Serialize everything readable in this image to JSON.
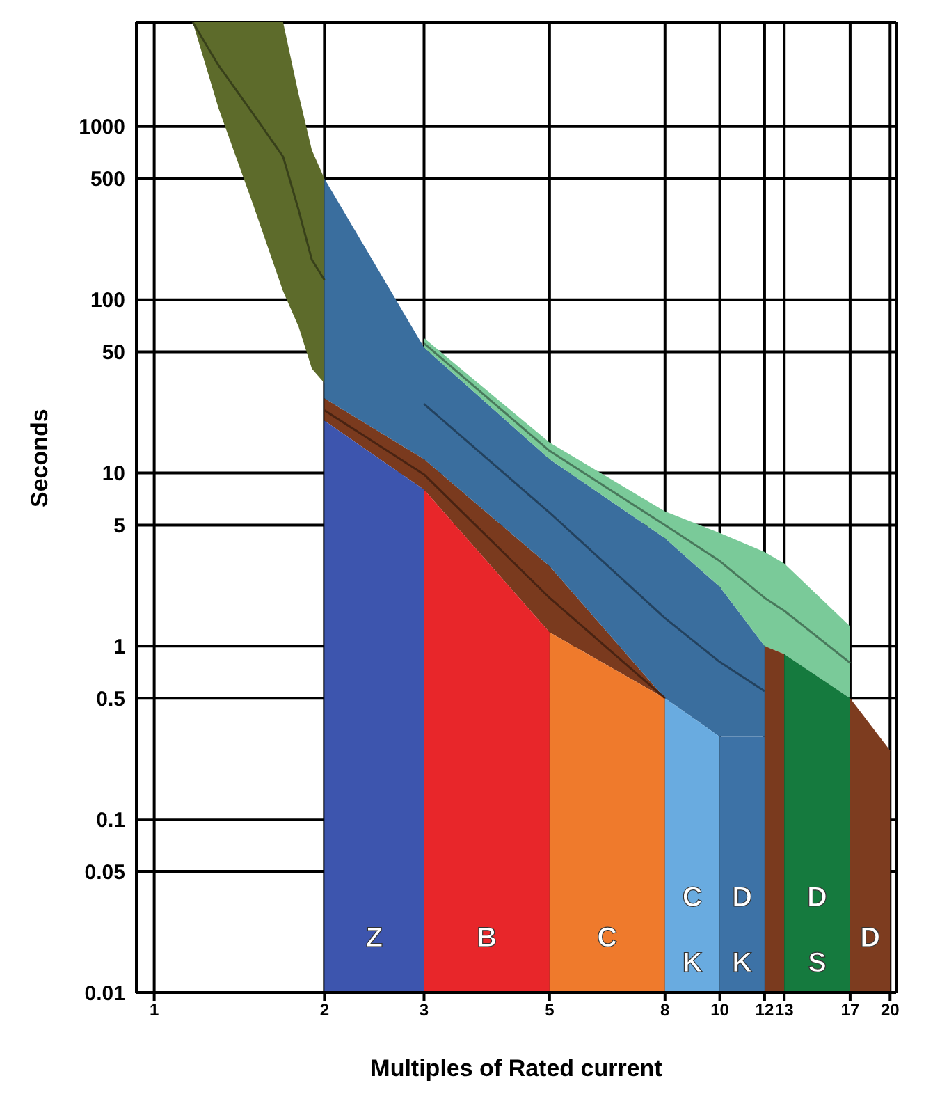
{
  "chart_data": {
    "type": "area",
    "xlabel": "Multiples of Rated current",
    "ylabel": "Seconds",
    "log": "xy",
    "grid": true,
    "legend": false,
    "xlim": [
      0.93,
      20.5
    ],
    "xticks": [
      1,
      2,
      3,
      5,
      8,
      10,
      12,
      13,
      17,
      20
    ],
    "ylim": [
      0.01,
      4000
    ],
    "yticks": [
      0.01,
      0.05,
      0.1,
      0.5,
      1,
      5,
      10,
      50,
      100,
      500,
      1000
    ],
    "series": [
      {
        "type": "line",
        "color": "#38401a",
        "x": [
          1.17,
          1.3,
          1.5,
          1.69,
          1.8,
          1.9,
          2
        ],
        "values": [
          4000,
          2250,
          1170,
          670,
          330,
          170,
          130
        ],
        "lower": [
          4000,
          1270,
          345,
          112,
          70,
          40,
          33
        ],
        "upper": [
          4000,
          4000,
          4000,
          4000,
          1540,
          730,
          500
        ]
      },
      {
        "type": "line",
        "color": "#492312",
        "x": [
          2,
          3,
          5,
          8
        ],
        "values": [
          23,
          9.8,
          1.9,
          0.5
        ],
        "lower": [
          20,
          8,
          1.2,
          0.5
        ],
        "upper": [
          27,
          12,
          2.9,
          0.5
        ]
      },
      {
        "type": "line",
        "color": "#23425f",
        "x": [
          2,
          3,
          5,
          8,
          10,
          12
        ],
        "values": [
          null,
          25,
          5.9,
          1.45,
          0.81,
          0.55
        ],
        "lower": [
          27,
          12,
          2.9,
          0.5,
          0.3,
          0.3
        ],
        "upper": [
          500,
          53,
          12,
          4.2,
          2.2,
          1
        ]
      },
      {
        "type": "line",
        "color": "#49795c",
        "x": [
          3,
          5,
          8,
          10,
          12,
          13,
          17
        ],
        "values": [
          56,
          13.4,
          5,
          3.1,
          1.9,
          1.6,
          0.8
        ],
        "lower": [
          53,
          12,
          4.2,
          2.2,
          1,
          0.9,
          0.5
        ],
        "upper": [
          60,
          15,
          6,
          4.5,
          3.5,
          3,
          1.3
        ]
      },
      {
        "name": "Z",
        "color": "#3d55ae",
        "x": [
          2,
          3
        ],
        "values": [
          20,
          8
        ]
      },
      {
        "name": "B",
        "color": "#e8262a",
        "x": [
          3,
          5
        ],
        "values": [
          8,
          1.2
        ]
      },
      {
        "name": "C",
        "color": "#ef7a2c",
        "x": [
          5,
          8
        ],
        "values": [
          1.2,
          0.5
        ]
      },
      {
        "name": "C K",
        "color": "#69abe0",
        "x": [
          8,
          10
        ],
        "values": [
          0.5,
          0.3
        ]
      },
      {
        "name": "D K",
        "color": "#3d72a6",
        "x": [
          10,
          12
        ],
        "values": [
          0.3,
          0.3
        ]
      },
      {
        "color": "#7a3a1e",
        "x": [
          12,
          13
        ],
        "values": [
          1,
          0.9
        ]
      },
      {
        "name": "D S",
        "color": "#157a3e",
        "x": [
          13,
          17
        ],
        "values": [
          0.9,
          0.5
        ]
      },
      {
        "name": "D",
        "color": "#7d3c1f",
        "x": [
          17,
          20
        ],
        "values": [
          0.5,
          0.25
        ]
      }
    ]
  }
}
